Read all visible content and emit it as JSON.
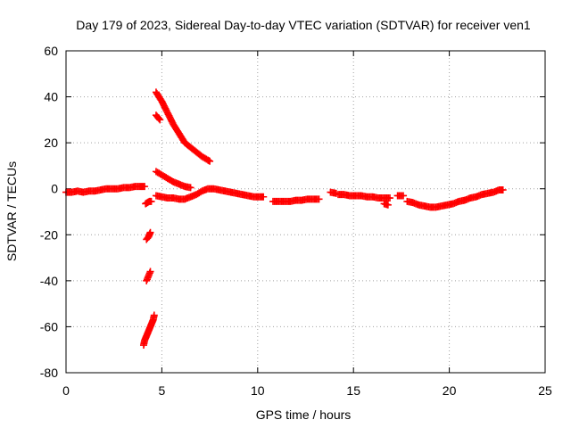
{
  "chart_data": {
    "type": "scatter",
    "title": "Day 179 of 2023, Sidereal Day-to-day VTEC variation (SDTVAR) for receiver ven1",
    "xlabel": "GPS time / hours",
    "ylabel": "SDTVAR / TECUs",
    "xlim": [
      0,
      25
    ],
    "ylim": [
      -80,
      60
    ],
    "xticks": [
      "0",
      "5",
      "10",
      "15",
      "20",
      "25"
    ],
    "yticks": [
      "-80",
      "-60",
      "-40",
      "-20",
      "0",
      "20",
      "40",
      "60"
    ],
    "grid": true,
    "marker": "plus",
    "series": [
      {
        "name": "SDTVAR",
        "color": "#ff0000",
        "segments": [
          {
            "x": [
              0.0,
              0.3,
              0.6,
              0.9,
              1.2,
              1.5,
              1.8,
              2.1,
              2.4,
              2.7,
              3.0,
              3.3,
              3.6,
              3.9,
              4.1
            ],
            "y": [
              -1.5,
              -1.5,
              -1.0,
              -1.5,
              -1.0,
              -1.0,
              -0.5,
              0.0,
              0.0,
              0.0,
              0.5,
              0.5,
              1.0,
              1.0,
              1.0
            ]
          },
          {
            "x": [
              4.2,
              4.3,
              4.35,
              4.4
            ],
            "y": [
              -22,
              -21,
              -20,
              -19
            ]
          },
          {
            "x": [
              4.2,
              4.3,
              4.4
            ],
            "y": [
              -40,
              -38,
              -36
            ]
          },
          {
            "x": [
              4.05,
              4.1,
              4.15,
              4.2,
              4.25,
              4.3,
              4.35,
              4.4,
              4.45,
              4.5,
              4.55,
              4.6
            ],
            "y": [
              -68,
              -66,
              -65,
              -64,
              -63,
              -62,
              -61,
              -60,
              -59,
              -58,
              -57,
              -55
            ]
          },
          {
            "x": [
              4.15,
              4.25,
              4.35,
              4.45
            ],
            "y": [
              -6.5,
              -6,
              -5.5,
              -5.5
            ]
          },
          {
            "x": [
              4.7,
              4.8,
              4.9
            ],
            "y": [
              32,
              31,
              30
            ]
          },
          {
            "x": [
              4.7,
              5.0,
              5.3,
              5.6,
              5.9,
              6.2,
              6.5,
              6.8,
              7.1,
              7.4,
              7.5
            ],
            "y": [
              42,
              38,
              33,
              28,
              24,
              20,
              18,
              16,
              14,
              12.5,
              12
            ]
          },
          {
            "x": [
              4.7,
              5.0,
              5.3,
              5.6,
              5.9,
              6.2,
              6.5
            ],
            "y": [
              7.5,
              6.0,
              4.5,
              3.0,
              2.0,
              1.0,
              0.5
            ]
          },
          {
            "x": [
              4.7,
              5.0,
              5.3,
              5.6,
              5.9,
              6.2,
              6.5,
              6.8,
              7.1,
              7.4,
              7.7,
              8.0,
              8.3,
              8.6,
              8.9,
              9.2,
              9.5,
              9.8,
              10.1,
              10.3
            ],
            "y": [
              -3,
              -3.5,
              -4,
              -4,
              -4.5,
              -4.5,
              -3.5,
              -2.5,
              -1.0,
              0.0,
              0.0,
              -0.5,
              -1.0,
              -1.5,
              -2.0,
              -2.5,
              -3.0,
              -3.5,
              -3.5,
              -3.5
            ]
          },
          {
            "x": [
              10.8,
              11.1,
              11.4,
              11.7,
              12.0,
              12.3,
              12.6,
              12.9,
              13.2
            ],
            "y": [
              -5.5,
              -5.5,
              -5.5,
              -5.5,
              -5.0,
              -5.0,
              -4.5,
              -4.5,
              -4.5
            ]
          },
          {
            "x": [
              13.8,
              14.1
            ],
            "y": [
              -1.5,
              -2.0
            ]
          },
          {
            "x": [
              14.2,
              14.5,
              14.8,
              15.1,
              15.4,
              15.7,
              16.0,
              16.3,
              16.6,
              16.9
            ],
            "y": [
              -2.5,
              -2.5,
              -3.0,
              -3.0,
              -3.0,
              -3.5,
              -3.5,
              -4.0,
              -4.0,
              -4.0
            ]
          },
          {
            "x": [
              16.6,
              16.8
            ],
            "y": [
              -6.5,
              -7.0
            ]
          },
          {
            "x": [
              17.3,
              17.6
            ],
            "y": [
              -3.0,
              -3.0
            ]
          },
          {
            "x": [
              17.8,
              18.1,
              18.4,
              18.7,
              19.0,
              19.3,
              19.6,
              19.9,
              20.2,
              20.5,
              20.8,
              21.1,
              21.4,
              21.7,
              22.0,
              22.3,
              22.6,
              22.8
            ],
            "y": [
              -5.5,
              -6.0,
              -7.0,
              -7.5,
              -8.0,
              -8.0,
              -7.5,
              -7.0,
              -6.5,
              -5.5,
              -5.0,
              -4.0,
              -3.5,
              -2.5,
              -2.0,
              -1.5,
              -0.5,
              -0.5
            ]
          }
        ]
      }
    ]
  }
}
